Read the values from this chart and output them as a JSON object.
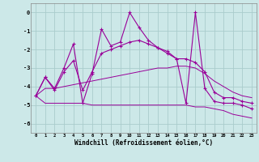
{
  "xlabel": "Windchill (Refroidissement éolien,°C)",
  "hours": [
    0,
    1,
    2,
    3,
    4,
    5,
    6,
    7,
    8,
    9,
    10,
    11,
    12,
    13,
    14,
    15,
    16,
    17,
    18,
    19,
    20,
    21,
    22,
    23
  ],
  "windchill": [
    -4.5,
    -3.5,
    -4.1,
    -3.0,
    -1.7,
    -4.9,
    -3.3,
    -0.9,
    -1.8,
    -1.6,
    0.0,
    -0.8,
    -1.5,
    -1.9,
    -2.1,
    -2.5,
    -4.9,
    0.0,
    -4.1,
    -4.8,
    -4.9,
    -4.9,
    -5.0,
    -5.2
  ],
  "trend": [
    -4.5,
    -3.5,
    -4.2,
    -3.2,
    -2.6,
    -4.2,
    -3.2,
    -2.2,
    -2.0,
    -1.8,
    -1.6,
    -1.5,
    -1.7,
    -1.9,
    -2.2,
    -2.5,
    -2.5,
    -2.7,
    -3.2,
    -4.3,
    -4.6,
    -4.6,
    -4.8,
    -4.9
  ],
  "upper": [
    -4.5,
    -4.1,
    -4.1,
    -4.0,
    -3.9,
    -3.8,
    -3.7,
    -3.6,
    -3.5,
    -3.4,
    -3.3,
    -3.2,
    -3.1,
    -3.0,
    -3.0,
    -2.9,
    -2.9,
    -3.0,
    -3.3,
    -3.7,
    -4.0,
    -4.3,
    -4.5,
    -4.6
  ],
  "lower": [
    -4.5,
    -4.9,
    -4.9,
    -4.9,
    -4.9,
    -4.9,
    -5.0,
    -5.0,
    -5.0,
    -5.0,
    -5.0,
    -5.0,
    -5.0,
    -5.0,
    -5.0,
    -5.0,
    -5.0,
    -5.1,
    -5.1,
    -5.2,
    -5.3,
    -5.5,
    -5.6,
    -5.7
  ],
  "line_color": "#990099",
  "bg_color": "#cce8e8",
  "grid_color": "#aacccc",
  "ylim": [
    -6.5,
    0.5
  ],
  "xlim": [
    -0.5,
    23.5
  ],
  "yticks": [
    0,
    -1,
    -2,
    -3,
    -4,
    -5,
    -6
  ],
  "xticks": [
    0,
    1,
    2,
    3,
    4,
    5,
    6,
    7,
    8,
    9,
    10,
    11,
    12,
    13,
    14,
    15,
    16,
    17,
    18,
    19,
    20,
    21,
    22,
    23
  ]
}
